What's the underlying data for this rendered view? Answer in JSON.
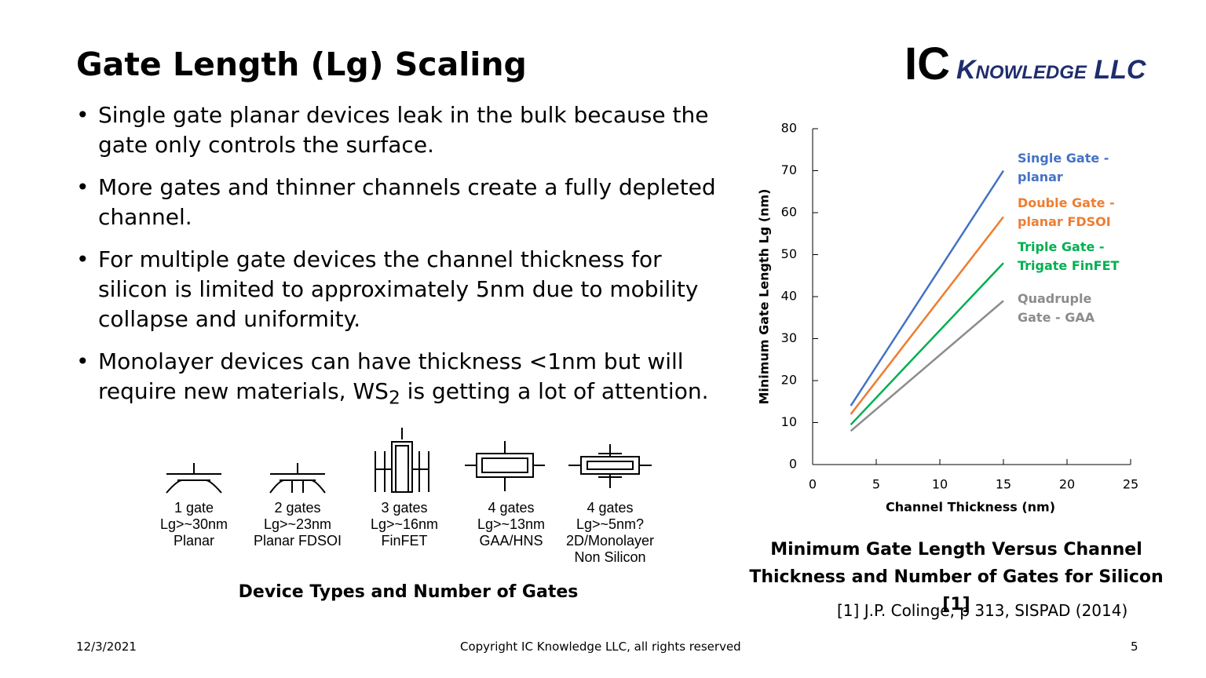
{
  "title": "Gate Length (Lg) Scaling",
  "logo": {
    "ic": "IC",
    "name": "Knowledge LLC"
  },
  "bullets": [
    {
      "text": "Single gate planar devices leak in the bulk because the gate only controls the surface."
    },
    {
      "text": "More gates and thinner channels create a fully depleted channel."
    },
    {
      "text": "For multiple gate devices the channel thickness for silicon is limited to approximately 5nm due to mobility collapse and uniformity."
    },
    {
      "text": "Monolayer devices can have thickness <1nm but will require new materials, WS",
      "sub": "2",
      "after": " is getting a lot of attention."
    }
  ],
  "devices": [
    {
      "lines": [
        "1 gate",
        "Lg>~30nm",
        "Planar"
      ]
    },
    {
      "lines": [
        "2 gates",
        "Lg>~23nm",
        "Planar FDSOI"
      ]
    },
    {
      "lines": [
        "3 gates",
        "Lg>~16nm",
        "FinFET"
      ]
    },
    {
      "lines": [
        "4 gates",
        "Lg>~13nm",
        "GAA/HNS"
      ]
    },
    {
      "lines": [
        "4 gates",
        "Lg>~5nm?",
        "2D/Monolayer",
        "Non Silicon"
      ]
    }
  ],
  "devices_caption": "Device Types and Number of Gates",
  "chart_data": {
    "type": "line",
    "x_label": "Channel Thickness (nm)",
    "y_label": "Minimum Gate Length Lg (nm)",
    "x": [
      3,
      15
    ],
    "series": [
      {
        "name": "Single Gate - planar",
        "color": "#4472c4",
        "values": [
          14,
          70
        ]
      },
      {
        "name": "Double Gate - planar FDSOI",
        "color": "#ed7d31",
        "values": [
          12,
          59
        ]
      },
      {
        "name": "Triple Gate - Trigate FinFET",
        "color": "#00b050",
        "values": [
          9.5,
          48
        ]
      },
      {
        "name": "Quadruple Gate - GAA",
        "color": "#8c8c8c",
        "values": [
          8,
          39
        ]
      }
    ],
    "xlim": [
      0,
      25
    ],
    "ylim": [
      0,
      80
    ],
    "xticks": [
      0,
      5,
      10,
      15,
      20,
      25
    ],
    "yticks": [
      0,
      10,
      20,
      30,
      40,
      50,
      60,
      70,
      80
    ]
  },
  "chart_caption": "Minimum Gate Length Versus Channel Thickness and Number of Gates for Silicon [1]",
  "reference": "[1] J.P. Colinge, p 313, SISPAD (2014)",
  "footer": {
    "date": "12/3/2021",
    "copyright": "Copyright IC Knowledge LLC, all rights reserved",
    "page": "5"
  }
}
